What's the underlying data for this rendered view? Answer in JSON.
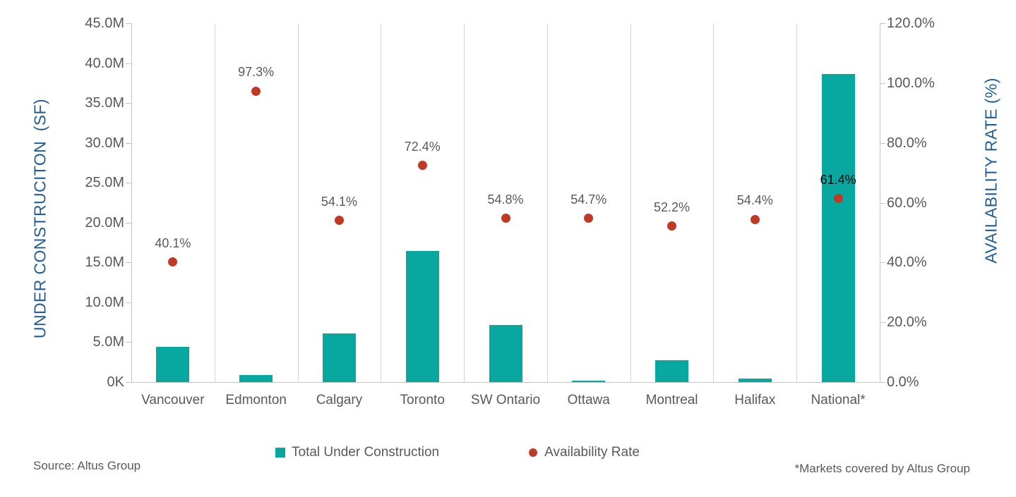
{
  "chart_data": {
    "type": "combo-bar-scatter",
    "categories": [
      "Vancouver",
      "Edmonton",
      "Calgary",
      "Toronto",
      "SW Ontario",
      "Ottawa",
      "Montreal",
      "Halifax",
      "National*"
    ],
    "series": [
      {
        "name": "Total Under Construction",
        "type": "bar",
        "axis": "left",
        "unit": "M SF",
        "values": [
          4.4,
          0.9,
          6.1,
          16.4,
          7.2,
          0.2,
          2.7,
          0.4,
          38.6
        ],
        "color": "#08A7A0"
      },
      {
        "name": "Availability Rate",
        "type": "scatter",
        "axis": "right",
        "unit": "%",
        "values": [
          40.1,
          97.3,
          54.1,
          72.4,
          54.8,
          54.7,
          52.2,
          54.4,
          61.4
        ],
        "labels": [
          "40.1%",
          "97.3%",
          "54.1%",
          "72.4%",
          "54.8%",
          "54.7%",
          "52.2%",
          "54.4%",
          "61.4%"
        ],
        "color": "#BF3A26"
      }
    ],
    "left_axis": {
      "title": "UNDER CONSTRUCITON  (SF)",
      "min": 0,
      "max": 45,
      "ticks": [
        "45.0M",
        "40.0M",
        "35.0M",
        "30.0M",
        "25.0M",
        "20.0M",
        "15.0M",
        "10.0M",
        "5.0M",
        "0K"
      ]
    },
    "right_axis": {
      "title": "AVAILABILITY RATE (%)",
      "min": 0,
      "max": 120,
      "ticks": [
        "120.0%",
        "100.0%",
        "80.0%",
        "60.0%",
        "40.0%",
        "20.0%",
        "0.0%"
      ]
    },
    "legend": [
      "Total Under Construction",
      "Availability Rate"
    ],
    "footnotes": {
      "source": "Source: Altus Group",
      "markets": "*Markets covered by Altus Group"
    },
    "label_colors": {
      "default": "#595959",
      "national": "#000000"
    },
    "grid": "vertical-separators-only",
    "legend_position": "bottom-center"
  }
}
